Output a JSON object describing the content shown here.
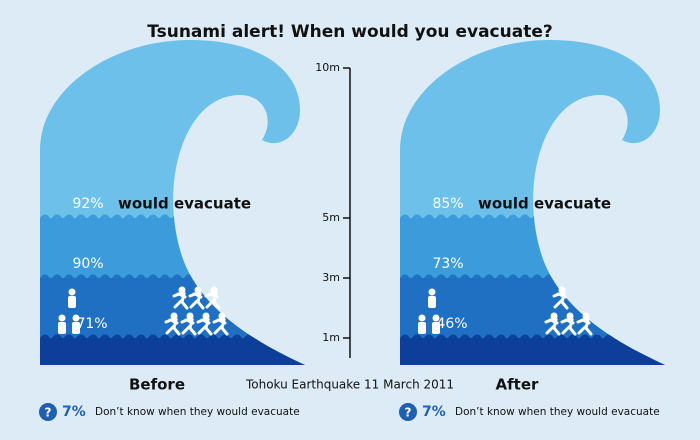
{
  "chart_data": {
    "type": "wave",
    "title": "Tsunami alert! When would you evacuate?",
    "subtitle": "Tohoku Earthquake 11 March 2011",
    "annotation": "would evacuate",
    "ylim": [
      0,
      10
    ],
    "yticks": [
      {
        "value": 10,
        "label": "10m"
      },
      {
        "value": 5,
        "label": "5m"
      },
      {
        "value": 3,
        "label": "3m"
      },
      {
        "value": 1,
        "label": "1m"
      }
    ],
    "heights": [
      5,
      3,
      1
    ],
    "colors": [
      "#6cc0ea",
      "#3b9bdb",
      "#1f6fc2",
      "#0d3f9a"
    ],
    "series": [
      {
        "name": "Before",
        "values": [
          92,
          90,
          71
        ],
        "value_labels": [
          "92%",
          "90%",
          "71%"
        ]
      },
      {
        "name": "After",
        "values": [
          85,
          73,
          46
        ],
        "value_labels": [
          "85%",
          "73%",
          "46%"
        ]
      }
    ],
    "unknown": {
      "values": [
        7,
        7
      ],
      "value_labels": [
        "7%",
        "7%"
      ],
      "label": "Don’t know when they would evacuate"
    }
  }
}
